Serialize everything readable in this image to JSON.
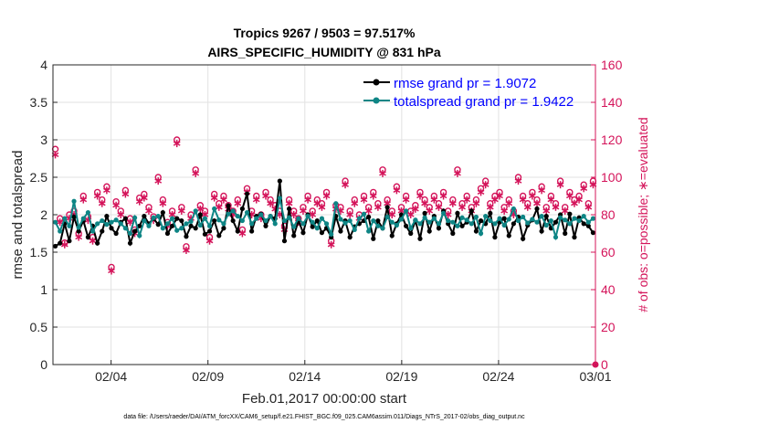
{
  "chart_data": {
    "type": "line",
    "title": "Tropics 9267 / 9503 = 97.517%",
    "subtitle": "AIRS_SPECIFIC_HUMIDITY @ 831 hPa",
    "xlabel": "Feb.01,2017 00:00:00 start",
    "ylabel": "rmse and totalspread",
    "y2label": "# of obs: o=possible; ∗=evaluated",
    "footer": "data file: /Users/raeder/DAI/ATM_forcXX/CAM6_setup/f.e21.FHIST_BGC.f09_025.CAM6assim.011/Diags_NTrS_2017-02/obs_diag_output.nc",
    "xlim": [
      1,
      29
    ],
    "ylim": [
      0,
      4
    ],
    "y2lim": [
      0,
      160
    ],
    "xticks": [
      {
        "x": 4,
        "label": "02/04"
      },
      {
        "x": 9,
        "label": "02/09"
      },
      {
        "x": 14,
        "label": "02/14"
      },
      {
        "x": 19,
        "label": "02/19"
      },
      {
        "x": 24,
        "label": "02/24"
      },
      {
        "x": 29,
        "label": "03/01"
      }
    ],
    "yticks": [
      "0",
      "0.5",
      "1",
      "1.5",
      "2",
      "2.5",
      "3",
      "3.5",
      "4"
    ],
    "y2ticks": [
      "0",
      "20",
      "40",
      "60",
      "80",
      "100",
      "120",
      "140",
      "160"
    ],
    "grid": true,
    "legend_position": "top-right",
    "colors": {
      "rmse": "#000000",
      "spread": "#0e8585",
      "obs": "#d4145a",
      "y2axis": "#d4145a",
      "legend_text": "#0000ff",
      "grid": "#e2e2e2"
    },
    "series": [
      {
        "name": "rmse grand pr = 1.9072",
        "axis": "left",
        "color": "#000000",
        "values": [
          1.58,
          1.62,
          1.88,
          1.65,
          1.97,
          1.78,
          1.92,
          1.7,
          1.85,
          1.62,
          1.78,
          1.98,
          1.82,
          1.75,
          1.9,
          1.95,
          1.62,
          1.78,
          1.85,
          1.98,
          1.88,
          1.95,
          1.87,
          2.03,
          1.75,
          1.85,
          1.95,
          1.92,
          1.71,
          1.85,
          1.82,
          2.0,
          1.74,
          1.78,
          1.92,
          1.72,
          1.82,
          2.12,
          1.92,
          1.78,
          2.08,
          2.28,
          1.78,
          1.98,
          2.01,
          1.85,
          1.98,
          1.95,
          2.45,
          1.65,
          2.08,
          1.72,
          1.92,
          1.76,
          2.0,
          1.84,
          1.92,
          1.76,
          1.82,
          1.7,
          1.98,
          1.78,
          1.92,
          1.7,
          1.84,
          1.88,
          1.92,
          1.97,
          1.68,
          1.92,
          1.82,
          2.1,
          1.72,
          1.88,
          2.0,
          1.85,
          1.75,
          1.92,
          1.68,
          2.02,
          1.78,
          1.98,
          1.82,
          2.05,
          1.88,
          1.75,
          2.02,
          1.85,
          1.9,
          2.05,
          1.78,
          1.92,
          1.88,
          2.02,
          1.7,
          1.9,
          1.95,
          1.72,
          1.88,
          1.97,
          1.68,
          1.86,
          1.93,
          2.08,
          1.78,
          1.98,
          1.82,
          1.9,
          2.0,
          1.75,
          2.01,
          1.7,
          1.96,
          1.88,
          1.85,
          1.76
        ]
      },
      {
        "name": "totalspread grand pr = 1.9422",
        "axis": "left",
        "color": "#0e8585",
        "values": [
          1.9,
          1.78,
          1.95,
          1.85,
          2.18,
          1.83,
          1.95,
          2.03,
          1.78,
          1.88,
          1.92,
          1.87,
          1.9,
          1.93,
          1.88,
          1.82,
          1.75,
          1.96,
          1.72,
          1.92,
          1.85,
          1.96,
          1.98,
          1.82,
          1.88,
          1.95,
          1.79,
          1.82,
          1.88,
          1.91,
          2.05,
          1.86,
          1.95,
          1.85,
          2.08,
          1.93,
          1.88,
          2.01,
          2.05,
          1.98,
          1.92,
          2.03,
          1.88,
          1.95,
          2.0,
          1.92,
          1.98,
          1.88,
          2.22,
          1.92,
          1.96,
          1.84,
          1.95,
          1.88,
          1.98,
          1.9,
          1.82,
          1.95,
          1.88,
          1.74,
          2.15,
          1.94,
          1.89,
          1.92,
          1.8,
          1.95,
          2.01,
          1.78,
          1.92,
          1.85,
          1.82,
          1.97,
          1.9,
          1.86,
          1.94,
          2.05,
          1.82,
          1.93,
          1.88,
          1.96,
          1.9,
          1.95,
          1.88,
          2.02,
          1.92,
          1.9,
          1.85,
          1.96,
          1.93,
          1.88,
          1.97,
          1.75,
          1.98,
          1.92,
          1.88,
          1.95,
          1.86,
          1.94,
          2.08,
          1.92,
          1.97,
          1.89,
          1.94,
          1.9,
          1.98,
          1.86,
          1.92,
          1.7,
          1.96,
          1.93,
          1.88,
          1.95,
          1.92,
          1.98,
          1.9,
          1.95
        ]
      },
      {
        "name": "o possible",
        "axis": "right",
        "color": "#d4145a",
        "marker": "circle",
        "values": [
          115,
          78,
          65,
          80,
          82,
          70,
          90,
          79,
          68,
          92,
          88,
          95,
          52,
          87,
          82,
          93,
          78,
          72,
          89,
          91,
          84,
          79,
          100,
          88,
          76,
          82,
          120,
          84,
          63,
          80,
          104,
          85,
          82,
          68,
          91,
          86,
          90,
          85,
          82,
          88,
          72,
          94,
          82,
          90,
          80,
          92,
          88,
          85,
          82,
          74,
          88,
          82,
          78,
          84,
          90,
          82,
          88,
          86,
          92,
          66,
          85,
          84,
          98,
          82,
          88,
          80,
          90,
          84,
          92,
          86,
          104,
          88,
          82,
          95,
          84,
          90,
          82,
          85,
          92,
          88,
          84,
          90,
          86,
          92,
          82,
          88,
          104,
          86,
          90,
          84,
          88,
          94,
          98,
          86,
          90,
          92,
          84,
          88,
          82,
          100,
          90,
          86,
          92,
          88,
          95,
          84,
          90,
          86,
          98,
          84,
          92,
          88,
          90,
          96,
          86,
          98
        ]
      },
      {
        "name": "* evaluated",
        "axis": "right",
        "color": "#d4145a",
        "marker": "star",
        "values": [
          112,
          76,
          64,
          78,
          80,
          68,
          88,
          77,
          66,
          90,
          86,
          93,
          50,
          85,
          80,
          91,
          76,
          70,
          87,
          89,
          82,
          77,
          98,
          86,
          74,
          80,
          118,
          82,
          61,
          78,
          102,
          83,
          80,
          66,
          89,
          84,
          88,
          83,
          80,
          86,
          70,
          92,
          80,
          88,
          78,
          90,
          86,
          83,
          80,
          72,
          86,
          80,
          76,
          82,
          88,
          80,
          86,
          84,
          90,
          64,
          83,
          82,
          96,
          80,
          86,
          78,
          88,
          82,
          90,
          84,
          102,
          86,
          80,
          93,
          82,
          88,
          80,
          83,
          90,
          86,
          82,
          88,
          84,
          90,
          80,
          86,
          102,
          84,
          88,
          82,
          86,
          92,
          96,
          84,
          88,
          90,
          82,
          86,
          80,
          98,
          88,
          84,
          90,
          86,
          93,
          82,
          88,
          84,
          96,
          82,
          90,
          86,
          88,
          94,
          84,
          96
        ]
      }
    ],
    "legend": [
      "rmse grand pr = 1.9072",
      "totalspread grand pr = 1.9422"
    ]
  }
}
